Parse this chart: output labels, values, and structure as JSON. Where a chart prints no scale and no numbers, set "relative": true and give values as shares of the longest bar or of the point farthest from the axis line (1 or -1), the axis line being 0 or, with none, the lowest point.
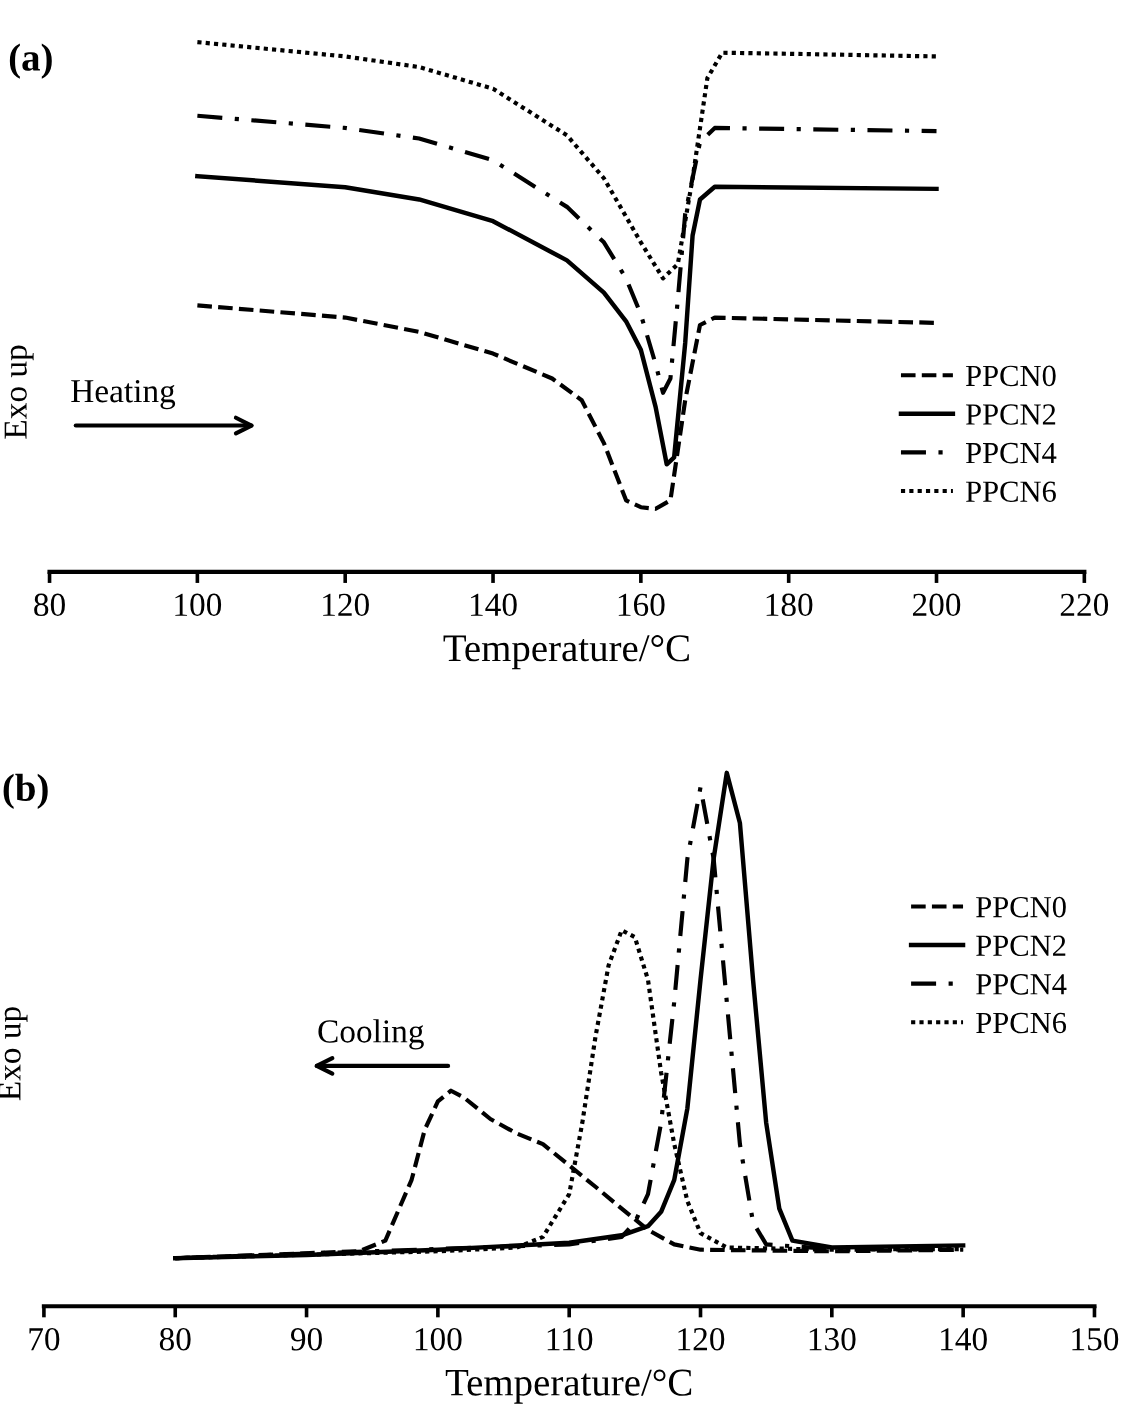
{
  "chart_data": [
    {
      "type": "line",
      "title": "(a)",
      "xlabel": "Temperature/°C",
      "ylabel": "Exo up",
      "relative": true,
      "xlim": [
        80,
        220
      ],
      "xticks": [
        80,
        100,
        120,
        140,
        160,
        180,
        200,
        220
      ],
      "legend": "right",
      "grid": false,
      "marker": "none",
      "annotations": [
        "Heating"
      ],
      "series": [
        {
          "name": "PPCN0",
          "color": "#000000",
          "line_style": "dashed",
          "x": [
            100,
            120,
            130,
            140,
            148,
            152,
            155,
            158,
            160,
            162,
            164,
            166,
            168,
            170,
            200
          ],
          "values": [
            0.503,
            0.48,
            0.453,
            0.412,
            0.365,
            0.324,
            0.243,
            0.135,
            0.122,
            0.119,
            0.135,
            0.324,
            0.466,
            0.48,
            0.47
          ]
        },
        {
          "name": "PPCN2",
          "color": "#000000",
          "line_style": "solid",
          "x": [
            100,
            120,
            130,
            140,
            150,
            155,
            158,
            160,
            162,
            163.5,
            164.5,
            166,
            167,
            168,
            170,
            200
          ],
          "values": [
            0.747,
            0.726,
            0.703,
            0.662,
            0.588,
            0.527,
            0.473,
            0.419,
            0.311,
            0.203,
            0.216,
            0.432,
            0.635,
            0.703,
            0.727,
            0.723
          ]
        },
        {
          "name": "PPCN4",
          "color": "#000000",
          "line_style": "dashdot",
          "x": [
            100,
            120,
            130,
            140,
            150,
            155,
            158,
            160,
            162,
            163,
            164,
            165,
            166,
            168,
            170,
            200
          ],
          "values": [
            0.861,
            0.838,
            0.818,
            0.777,
            0.689,
            0.622,
            0.554,
            0.486,
            0.392,
            0.338,
            0.365,
            0.514,
            0.676,
            0.811,
            0.838,
            0.832
          ]
        },
        {
          "name": "PPCN6",
          "color": "#000000",
          "line_style": "dotted",
          "x": [
            100,
            120,
            130,
            140,
            150,
            155,
            160,
            163,
            165,
            167,
            169,
            171,
            180,
            200
          ],
          "values": [
            1.0,
            0.973,
            0.953,
            0.912,
            0.824,
            0.743,
            0.622,
            0.554,
            0.581,
            0.743,
            0.932,
            0.98,
            0.978,
            0.973
          ]
        }
      ]
    },
    {
      "type": "line",
      "title": "(b)",
      "xlabel": "Temperature/°C",
      "ylabel": "Exo up",
      "relative": true,
      "xlim": [
        70,
        150
      ],
      "xticks": [
        70,
        80,
        90,
        100,
        110,
        120,
        130,
        140,
        150
      ],
      "legend": "right",
      "grid": false,
      "marker": "none",
      "annotations": [
        "Cooling"
      ],
      "series": [
        {
          "name": "PPCN0",
          "color": "#000000",
          "line_style": "dashed",
          "x": [
            80,
            94,
            96,
            98,
            99,
            100,
            101,
            102,
            104,
            106,
            108,
            110,
            112,
            114,
            116,
            118,
            120,
            130,
            140
          ],
          "values": [
            0.09,
            0.103,
            0.123,
            0.237,
            0.331,
            0.384,
            0.404,
            0.391,
            0.351,
            0.324,
            0.304,
            0.264,
            0.224,
            0.183,
            0.143,
            0.116,
            0.106,
            0.103,
            0.106
          ]
        },
        {
          "name": "PPCN2",
          "color": "#000000",
          "line_style": "solid",
          "x": [
            80,
            90,
            100,
            110,
            114,
            116,
            117,
            118,
            119,
            120,
            121,
            122,
            123,
            124,
            125,
            126,
            127,
            130,
            140
          ],
          "values": [
            0.09,
            0.096,
            0.106,
            0.119,
            0.133,
            0.15,
            0.177,
            0.237,
            0.371,
            0.612,
            0.839,
            1.0,
            0.906,
            0.612,
            0.344,
            0.183,
            0.123,
            0.11,
            0.114
          ]
        },
        {
          "name": "PPCN4",
          "color": "#000000",
          "line_style": "dashdot",
          "x": [
            80,
            110,
            114,
            115,
            116,
            117,
            118,
            119,
            120,
            121,
            122,
            123,
            124,
            125,
            130,
            140
          ],
          "values": [
            0.09,
            0.116,
            0.13,
            0.157,
            0.21,
            0.344,
            0.571,
            0.839,
            0.973,
            0.839,
            0.571,
            0.304,
            0.157,
            0.116,
            0.107,
            0.107
          ]
        },
        {
          "name": "PPCN6",
          "color": "#000000",
          "line_style": "dotted",
          "x": [
            80,
            100,
            106,
            108,
            110,
            111,
            112,
            113,
            114,
            115,
            116,
            117,
            118,
            119,
            120,
            122,
            130,
            140
          ],
          "values": [
            0.09,
            0.103,
            0.11,
            0.13,
            0.21,
            0.344,
            0.505,
            0.639,
            0.705,
            0.692,
            0.612,
            0.438,
            0.304,
            0.197,
            0.137,
            0.11,
            0.106,
            0.107
          ]
        }
      ]
    }
  ]
}
